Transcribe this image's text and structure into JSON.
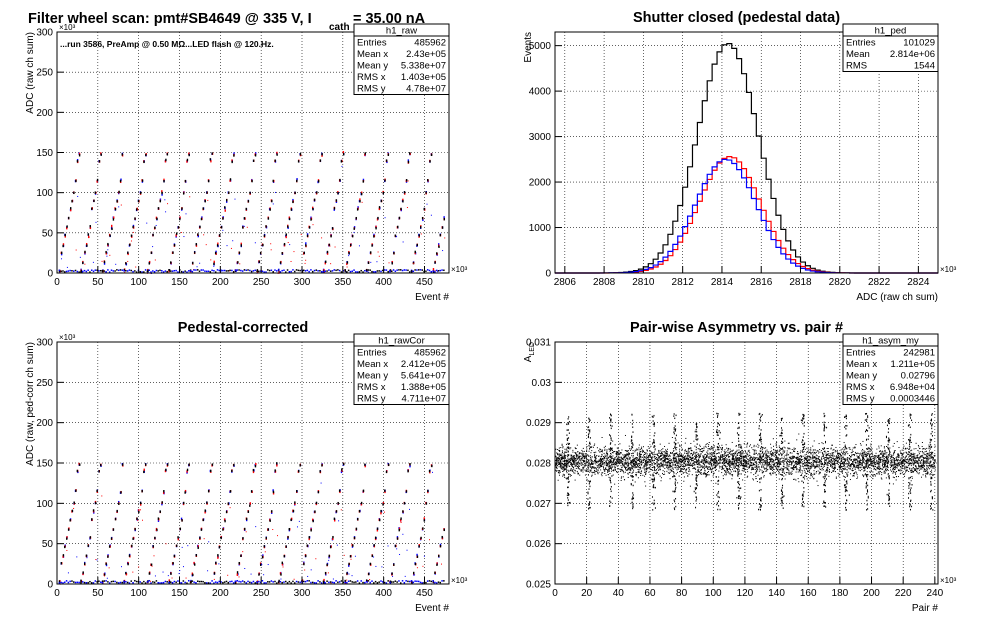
{
  "chart_data": [
    {
      "id": "raw",
      "type": "scatter",
      "title": "Filter wheel scan: pmt#SB4649 @   335 V, I",
      "title_sub": "cath",
      "title_tail": "= 35.00 nA",
      "annotation": "...run 3586, PreAmp @ 0.50 MΩ...LED flash @  120.Hz.",
      "xlabel": "Event #",
      "ylabel": "ADC (raw ch sum)",
      "xexp": "×10³",
      "yexp": "×10³",
      "xlim": [
        0,
        480
      ],
      "ylim": [
        0,
        300
      ],
      "xticks": [
        0,
        50,
        100,
        150,
        200,
        250,
        300,
        350,
        400,
        450
      ],
      "yticks": [
        0,
        50,
        100,
        150,
        200,
        250,
        300
      ],
      "grid": true,
      "stats": {
        "name": "h1_raw",
        "rows": [
          [
            "Entries",
            "485962"
          ],
          [
            "Mean x",
            "2.43e+05"
          ],
          [
            "Mean y",
            "5.338e+07"
          ],
          [
            "RMS x",
            "1.403e+05"
          ],
          [
            "RMS y",
            "4.78e+07"
          ]
        ]
      },
      "levels": [
        3,
        13,
        25,
        35,
        47,
        57,
        68,
        80,
        90,
        100,
        115,
        140,
        148
      ],
      "cycle_period": 27,
      "colors": {
        "a": "#0000ff",
        "b": "#ff0000",
        "c": "#000000"
      }
    },
    {
      "id": "ped",
      "type": "line",
      "title": "Shutter closed (pedestal data)",
      "xlabel": "ADC (raw ch sum)",
      "ylabel": "Events",
      "xexp": "×10³",
      "xlim": [
        2805.5,
        2825
      ],
      "ylim": [
        0,
        5300
      ],
      "xticks": [
        2806,
        2808,
        2810,
        2812,
        2814,
        2816,
        2818,
        2820,
        2822,
        2824
      ],
      "yticks": [
        0,
        1000,
        2000,
        3000,
        4000,
        5000
      ],
      "grid": true,
      "stats": {
        "name": "h1_ped",
        "rows": [
          [
            "Entries",
            "101029"
          ],
          [
            "Mean",
            "2.814e+06"
          ],
          [
            "RMS",
            "1544"
          ]
        ]
      },
      "series": [
        {
          "name": "",
          "color": "#000000",
          "peak": 5050,
          "mean": 2814.3,
          "sigma": 1.55
        },
        {
          "name": "",
          "color": "#ff0000",
          "peak": 2560,
          "mean": 2814.4,
          "sigma": 1.55
        },
        {
          "name": "",
          "color": "#0000ff",
          "peak": 2500,
          "mean": 2814.2,
          "sigma": 1.55
        }
      ]
    },
    {
      "id": "cor",
      "type": "scatter",
      "title": "Pedestal-corrected",
      "xlabel": "Event #",
      "ylabel": "ADC (raw, ped-corr ch sum)",
      "xexp": "×10³",
      "yexp": "×10³",
      "xlim": [
        0,
        480
      ],
      "ylim": [
        0,
        300
      ],
      "xticks": [
        0,
        50,
        100,
        150,
        200,
        250,
        300,
        350,
        400,
        450
      ],
      "yticks": [
        0,
        50,
        100,
        150,
        200,
        250,
        300
      ],
      "grid": true,
      "stats": {
        "name": "h1_rawCor",
        "rows": [
          [
            "Entries",
            "485962"
          ],
          [
            "Mean x",
            "2.412e+05"
          ],
          [
            "Mean y",
            "5.641e+07"
          ],
          [
            "RMS x",
            "1.388e+05"
          ],
          [
            "RMS y",
            "4.711e+07"
          ]
        ]
      },
      "levels": [
        3,
        13,
        25,
        35,
        47,
        57,
        68,
        80,
        90,
        100,
        115,
        140,
        148
      ],
      "cycle_period": 27,
      "colors": {
        "a": "#0000ff",
        "b": "#ff0000",
        "c": "#000000"
      }
    },
    {
      "id": "asym",
      "type": "scatter",
      "title": "Pair-wise Asymmetry vs. pair #",
      "xlabel": "Pair #",
      "ylabel": "A",
      "ylabel_sub": "LED",
      "xexp": "×10³",
      "xlim": [
        0,
        242
      ],
      "ylim": [
        0.025,
        0.031
      ],
      "xticks": [
        0,
        20,
        40,
        60,
        80,
        100,
        120,
        140,
        160,
        180,
        200,
        220,
        240
      ],
      "yticks": [
        0.025,
        0.026,
        0.027,
        0.028,
        0.029,
        0.03,
        0.031
      ],
      "grid": true,
      "stats": {
        "name": "h1_asym_my",
        "rows": [
          [
            "Entries",
            "242981"
          ],
          [
            "Mean x",
            "1.211e+05"
          ],
          [
            "Mean y",
            "0.02796"
          ],
          [
            "RMS x",
            "6.948e+04"
          ],
          [
            "RMS y",
            "0.0003446"
          ]
        ]
      },
      "center": 0.02805,
      "band": 0.0003,
      "spike_period": 13.5,
      "colors": {
        "a": "#000000"
      }
    }
  ]
}
